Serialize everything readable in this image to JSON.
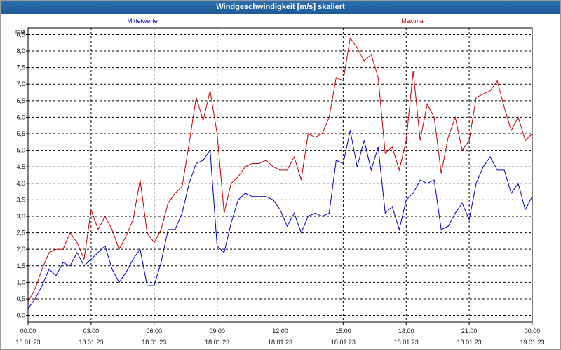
{
  "window": {
    "title": "Windgeschwindigkeit [m/s] skaliert"
  },
  "chart_data": {
    "type": "line",
    "title": "Windgeschwindigkeit [m/s] skaliert",
    "ylabel": "m/s",
    "xlabel": "",
    "ylim": [
      -0.2,
      8.7
    ],
    "y_ticks": [
      "0,0",
      "0,5",
      "1,0",
      "1,5",
      "2,0",
      "2,5",
      "3,0",
      "3,5",
      "4,0",
      "4,5",
      "5,0",
      "5,5",
      "6,0",
      "6,5",
      "7,0",
      "7,5",
      "8,0",
      "8,5"
    ],
    "x_ticks": [
      {
        "time": "00:00",
        "date": "18.01.23"
      },
      {
        "time": "03:00",
        "date": "18.01.23"
      },
      {
        "time": "06:00",
        "date": "18.01.23"
      },
      {
        "time": "09:00",
        "date": "18.01.23"
      },
      {
        "time": "12:00",
        "date": "18.01.23"
      },
      {
        "time": "15:00",
        "date": "18.01.23"
      },
      {
        "time": "18:00",
        "date": "18.01.23"
      },
      {
        "time": "21:00",
        "date": "18.01.23"
      },
      {
        "time": "00:00",
        "date": "19.01.23"
      }
    ],
    "grid": true,
    "legend": "top",
    "x": [
      "00:00",
      "00:20",
      "00:40",
      "01:00",
      "01:20",
      "01:40",
      "02:00",
      "02:20",
      "02:40",
      "03:00",
      "03:20",
      "03:40",
      "04:00",
      "04:20",
      "04:40",
      "05:00",
      "05:20",
      "05:40",
      "06:00",
      "06:20",
      "06:40",
      "07:00",
      "07:20",
      "07:40",
      "08:00",
      "08:20",
      "08:40",
      "09:00",
      "09:20",
      "09:40",
      "10:00",
      "10:20",
      "10:40",
      "11:00",
      "11:20",
      "11:40",
      "12:00",
      "12:20",
      "12:40",
      "13:00",
      "13:20",
      "13:40",
      "14:00",
      "14:20",
      "14:40",
      "15:00",
      "15:20",
      "15:40",
      "16:00",
      "16:20",
      "16:40",
      "17:00",
      "17:20",
      "17:40",
      "18:00",
      "18:20",
      "18:40",
      "19:00",
      "19:20",
      "19:40",
      "20:00",
      "20:20",
      "20:40",
      "21:00",
      "21:20",
      "21:40",
      "22:00",
      "22:20",
      "22:40",
      "23:00",
      "23:20",
      "23:40",
      "00:00"
    ],
    "series": [
      {
        "name": "Mittelwerte",
        "color": "#0000c0",
        "values": [
          0.2,
          0.5,
          0.9,
          1.4,
          1.2,
          1.6,
          1.5,
          1.9,
          1.5,
          1.7,
          1.9,
          2.1,
          1.4,
          1.0,
          1.3,
          1.7,
          2.0,
          0.9,
          0.9,
          1.6,
          2.6,
          2.6,
          3.1,
          4.0,
          4.6,
          4.7,
          5.0,
          2.1,
          1.9,
          2.8,
          3.5,
          3.7,
          3.6,
          3.6,
          3.6,
          3.5,
          3.2,
          2.7,
          3.1,
          2.5,
          3.0,
          3.1,
          3.0,
          3.1,
          4.7,
          4.6,
          5.6,
          4.5,
          5.3,
          4.4,
          5.1,
          3.1,
          3.3,
          2.6,
          3.5,
          3.7,
          4.1,
          4.0,
          4.1,
          2.6,
          2.7,
          3.1,
          3.4,
          2.9,
          4.0,
          4.5,
          4.8,
          4.4,
          4.4,
          3.7,
          4.0,
          3.2,
          3.6
        ]
      },
      {
        "name": "Maxima",
        "color": "#c00000",
        "values": [
          0.4,
          0.8,
          1.4,
          1.9,
          2.0,
          2.0,
          2.5,
          2.2,
          1.7,
          3.2,
          2.6,
          3.0,
          2.6,
          2.0,
          2.4,
          2.9,
          4.1,
          2.5,
          2.2,
          2.6,
          3.4,
          3.7,
          3.9,
          5.2,
          6.6,
          5.9,
          6.8,
          5.5,
          3.1,
          4.0,
          4.2,
          4.5,
          4.6,
          4.6,
          4.7,
          4.5,
          4.4,
          4.4,
          4.8,
          4.1,
          5.5,
          5.4,
          5.5,
          6.0,
          7.2,
          7.1,
          8.4,
          8.1,
          7.7,
          7.9,
          7.2,
          4.9,
          5.1,
          4.4,
          5.3,
          7.4,
          5.3,
          6.4,
          6.0,
          4.3,
          5.4,
          6.0,
          5.0,
          5.3,
          6.6,
          6.7,
          6.8,
          7.1,
          6.3,
          5.6,
          6.0,
          5.3,
          5.5
        ]
      }
    ]
  }
}
